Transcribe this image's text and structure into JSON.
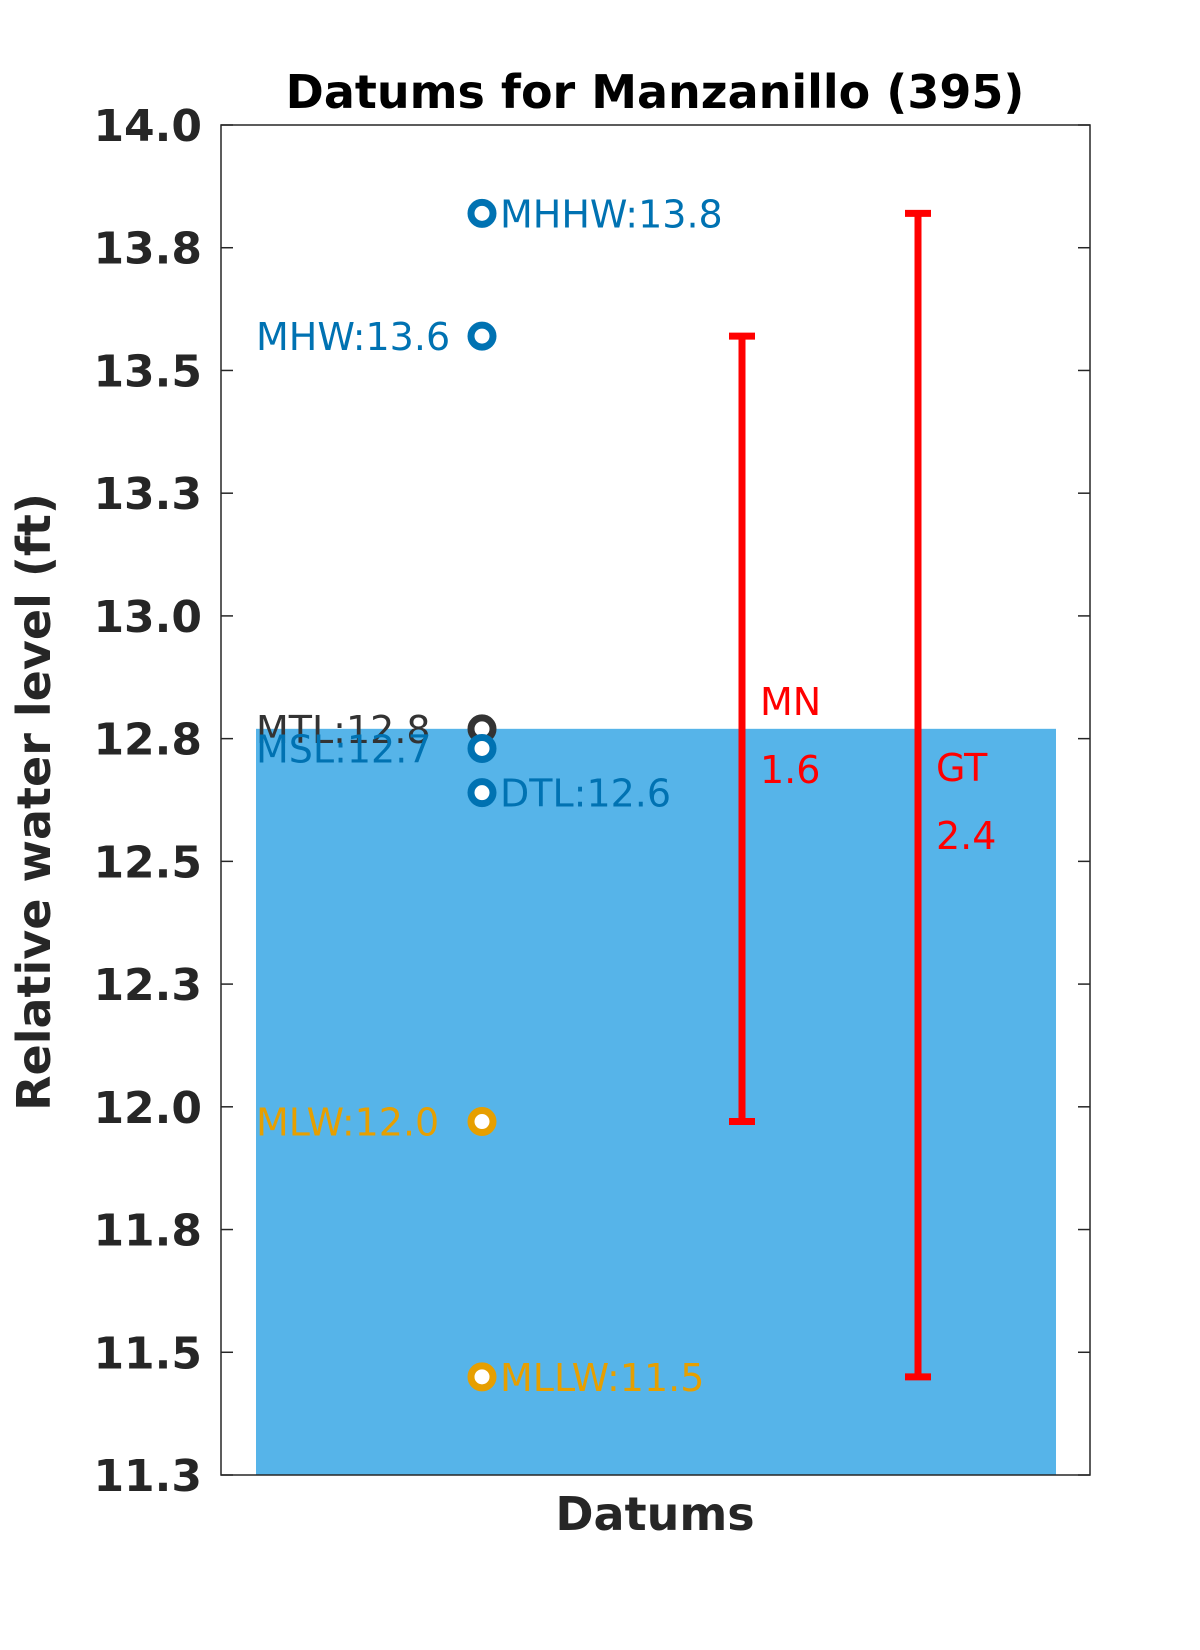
{
  "chart_data": {
    "type": "scatter",
    "title": "Datums for Manzanillo (395)",
    "xlabel": "Datums",
    "ylabel": "Relative water level (ft)",
    "ylim": [
      11.3,
      14.0
    ],
    "yticks": [
      "11.3",
      "11.5",
      "11.8",
      "12.0",
      "12.3",
      "12.5",
      "12.8",
      "13.0",
      "13.3",
      "13.5",
      "13.8",
      "14.0"
    ],
    "ytick_values": [
      11.25,
      11.5,
      11.75,
      12.0,
      12.25,
      12.5,
      12.75,
      13.0,
      13.25,
      13.5,
      13.75,
      14.0
    ],
    "grid": false,
    "water_level_bar": {
      "value": 12.77,
      "color": "#56b4e9"
    },
    "datums": [
      {
        "name": "MHHW",
        "label": "MHHW:13.8",
        "value": 13.82,
        "color": "#0072b2",
        "label_side": "right"
      },
      {
        "name": "MHW",
        "label": "MHW:13.6",
        "value": 13.57,
        "color": "#0072b2",
        "label_side": "left"
      },
      {
        "name": "MTL",
        "label": "MTL:12.8",
        "value": 12.77,
        "color": "#333333",
        "label_side": "left"
      },
      {
        "name": "MSL",
        "label": "MSL:12.7",
        "value": 12.73,
        "color": "#0072b2",
        "label_side": "left"
      },
      {
        "name": "DTL",
        "label": "DTL:12.6",
        "value": 12.64,
        "color": "#0072b2",
        "label_side": "right"
      },
      {
        "name": "MLW",
        "label": "MLW:12.0",
        "value": 11.97,
        "color": "#e69f00",
        "label_side": "left"
      },
      {
        "name": "MLLW",
        "label": "MLLW:11.5",
        "value": 11.45,
        "color": "#e69f00",
        "label_side": "right"
      }
    ],
    "ranges": [
      {
        "name": "MN",
        "label_name": "MN",
        "label_value": "1.6",
        "low": 11.97,
        "high": 13.57,
        "color": "#ff0000"
      },
      {
        "name": "GT",
        "label_name": "GT",
        "label_value": "2.4",
        "low": 11.45,
        "high": 13.82,
        "color": "#ff0000"
      }
    ]
  }
}
